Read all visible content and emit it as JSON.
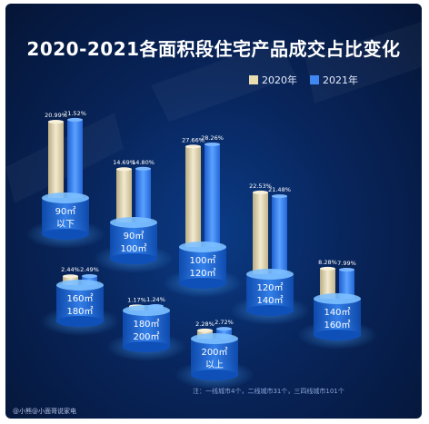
{
  "title": "2020-2021各面积段住宅产品成交占比变化",
  "legend": [
    {
      "label": "2020年",
      "color": "#e8ddb0"
    },
    {
      "label": "2021年",
      "color": "#3f88f2"
    }
  ],
  "note": "注：一线城市4个，二线城市31个，三四线城市101个",
  "credit": "@小熊@小面哥说家电",
  "chart_data": {
    "type": "bar",
    "title": "2020-2021各面积段住宅产品成交占比变化",
    "categories": [
      {
        "line1": "90㎡",
        "line2": "以下"
      },
      {
        "line1": "90㎡",
        "line2": "100㎡"
      },
      {
        "line1": "160㎡",
        "line2": "180㎡"
      },
      {
        "line1": "180㎡",
        "line2": "200㎡"
      },
      {
        "line1": "100㎡",
        "line2": "120㎡"
      },
      {
        "line1": "200㎡",
        "line2": "以上"
      },
      {
        "line1": "120㎡",
        "line2": "140㎡"
      },
      {
        "line1": "140㎡",
        "line2": "160㎡"
      }
    ],
    "series": [
      {
        "name": "2020年",
        "values": [
          20.99,
          14.69,
          2.44,
          1.17,
          27.66,
          2.28,
          22.53,
          8.28
        ],
        "labels": [
          "20.99%",
          "14.69%",
          "2.44%",
          "1.17%",
          "27.66%",
          "2.28%",
          "22.53%",
          "8.28%"
        ]
      },
      {
        "name": "2021年",
        "values": [
          21.52,
          14.8,
          2.49,
          1.24,
          28.26,
          2.72,
          21.48,
          7.99
        ],
        "labels": [
          "21.52%",
          "14.80%",
          "2.49%",
          "1.24%",
          "28.26%",
          "2.72%",
          "21.48%",
          "7.99%"
        ]
      }
    ]
  }
}
